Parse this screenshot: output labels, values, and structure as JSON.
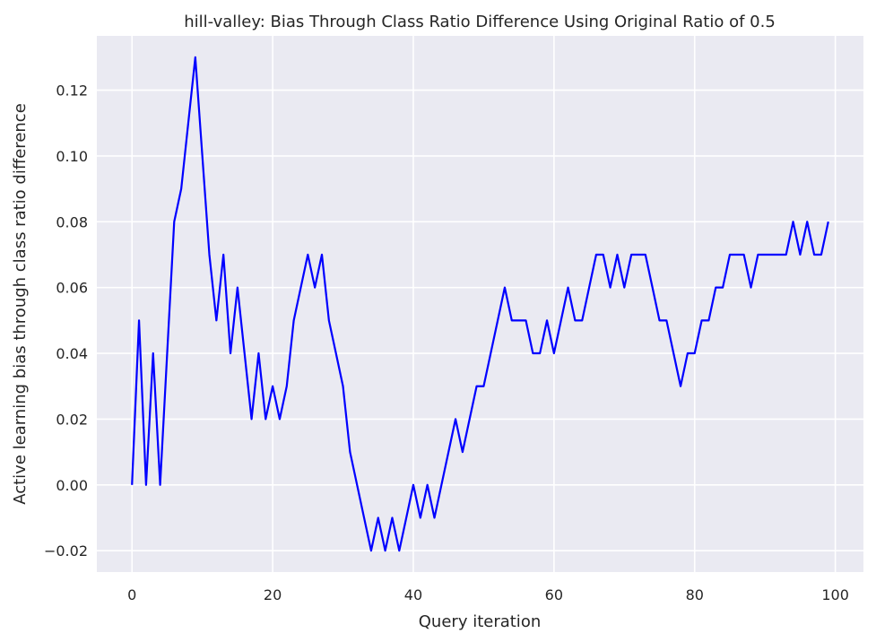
{
  "chart_data": {
    "type": "line",
    "title": "hill-valley: Bias Through Class Ratio Difference Using Original Ratio of 0.5",
    "xlabel": "Query iteration",
    "ylabel": "Active learning bias through class ratio difference",
    "xlim": [
      -5,
      104
    ],
    "ylim": [
      -0.0265,
      0.1365
    ],
    "xticks": [
      0,
      20,
      40,
      60,
      80,
      100
    ],
    "xtick_labels": [
      "0",
      "20",
      "40",
      "60",
      "80",
      "100"
    ],
    "yticks": [
      -0.02,
      0.0,
      0.02,
      0.04,
      0.06,
      0.08,
      0.1,
      0.12
    ],
    "ytick_labels": [
      "−0.02",
      "0.00",
      "0.02",
      "0.04",
      "0.06",
      "0.08",
      "0.10",
      "0.12"
    ],
    "grid": true,
    "colors": {
      "background": "#eaeaf2",
      "grid": "#ffffff",
      "line": "#0000ff"
    },
    "series": [
      {
        "x": [
          0,
          1,
          2,
          3,
          4,
          5,
          6,
          7,
          8,
          9,
          10,
          11,
          12,
          13,
          14,
          15,
          16,
          17,
          18,
          19,
          20,
          21,
          22,
          23,
          24,
          25,
          26,
          27,
          28,
          29,
          30,
          31,
          32,
          33,
          34,
          35,
          36,
          37,
          38,
          39,
          40,
          41,
          42,
          43,
          44,
          45,
          46,
          47,
          48,
          49,
          50,
          51,
          52,
          53,
          54,
          55,
          56,
          57,
          58,
          59,
          60,
          61,
          62,
          63,
          64,
          65,
          66,
          67,
          68,
          69,
          70,
          71,
          72,
          73,
          74,
          75,
          76,
          77,
          78,
          79,
          80,
          81,
          82,
          83,
          84,
          85,
          86,
          87,
          88,
          89,
          90,
          91,
          92,
          93,
          94,
          95,
          96,
          97,
          98,
          99
        ],
        "values": [
          0.0,
          0.05,
          0.0,
          0.04,
          0.0,
          0.04,
          0.08,
          0.09,
          0.11,
          0.13,
          0.1,
          0.07,
          0.05,
          0.07,
          0.04,
          0.06,
          0.04,
          0.02,
          0.04,
          0.02,
          0.03,
          0.02,
          0.03,
          0.05,
          0.06,
          0.07,
          0.06,
          0.07,
          0.05,
          0.04,
          0.03,
          0.01,
          0.0,
          -0.01,
          -0.02,
          -0.01,
          -0.02,
          -0.01,
          -0.02,
          -0.01,
          0.0,
          -0.01,
          0.0,
          -0.01,
          0.0,
          0.01,
          0.02,
          0.01,
          0.02,
          0.03,
          0.03,
          0.04,
          0.05,
          0.06,
          0.05,
          0.05,
          0.05,
          0.04,
          0.04,
          0.05,
          0.04,
          0.05,
          0.06,
          0.05,
          0.05,
          0.06,
          0.07,
          0.07,
          0.06,
          0.07,
          0.06,
          0.07,
          0.07,
          0.07,
          0.06,
          0.05,
          0.05,
          0.04,
          0.03,
          0.04,
          0.04,
          0.05,
          0.05,
          0.06,
          0.06,
          0.07,
          0.07,
          0.07,
          0.06,
          0.07,
          0.07,
          0.07,
          0.07,
          0.07,
          0.08,
          0.07,
          0.08,
          0.07,
          0.07,
          0.08
        ]
      }
    ]
  }
}
